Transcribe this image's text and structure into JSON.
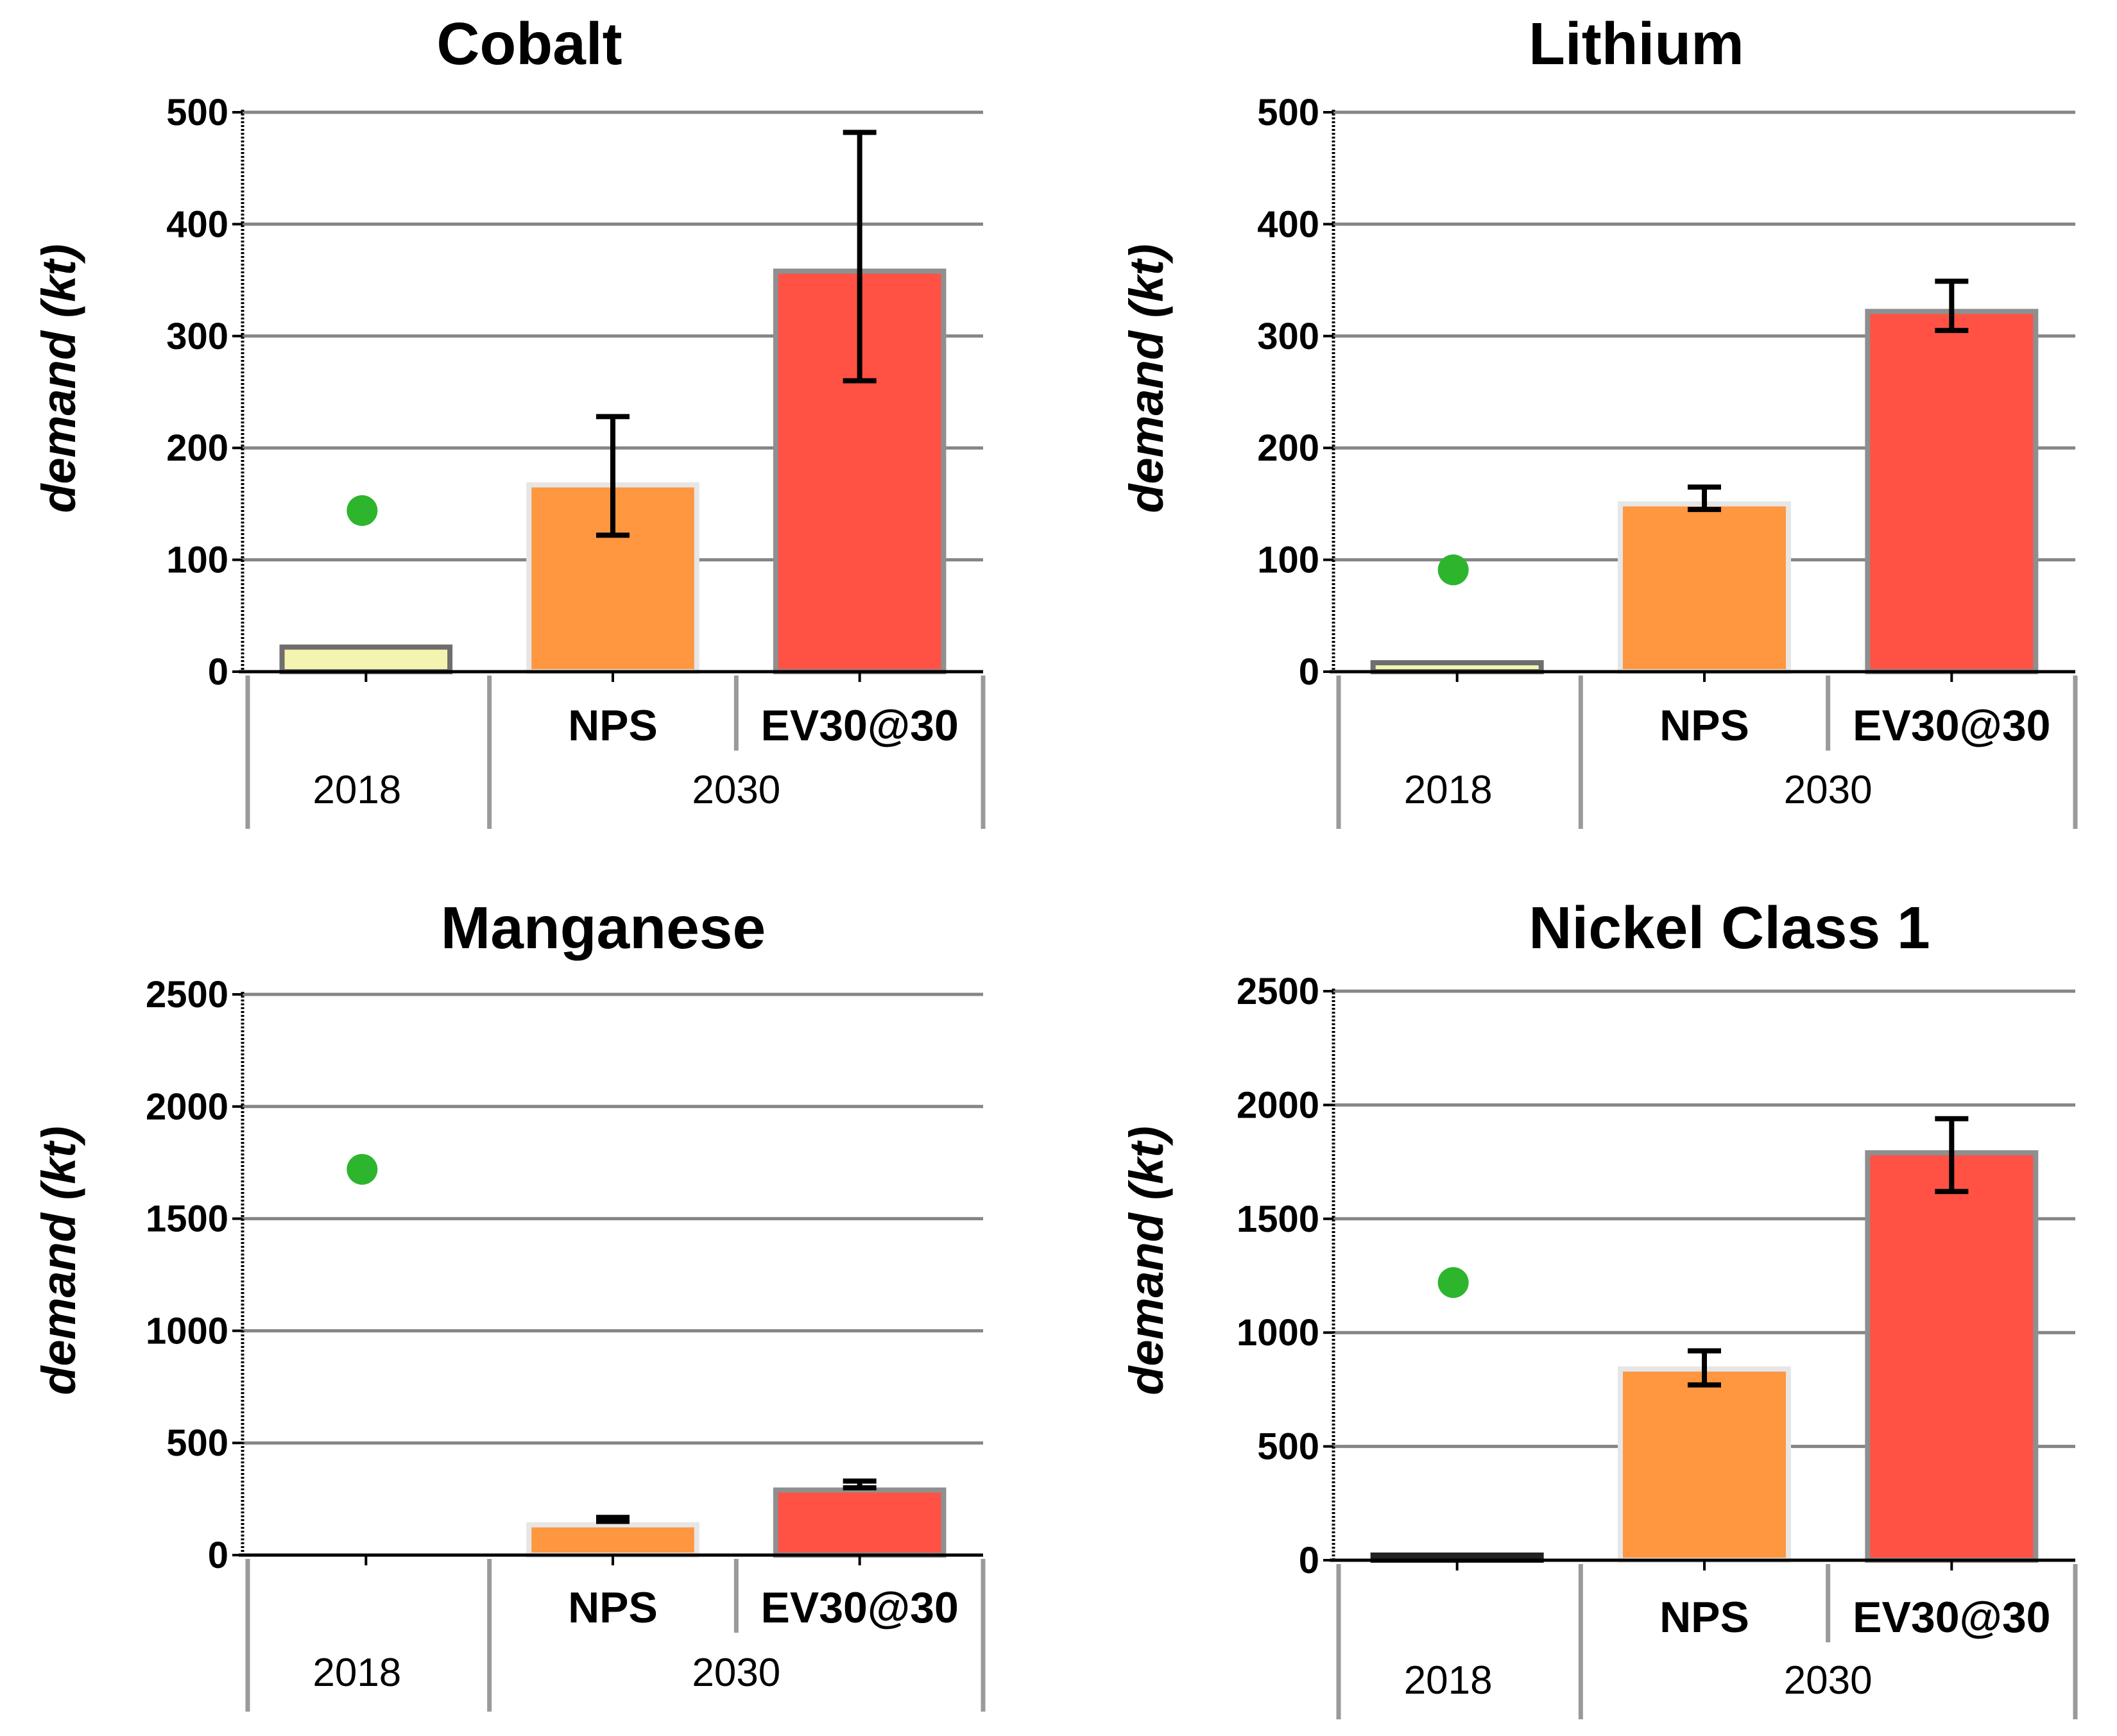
{
  "colors": {
    "bar_2018": "#F5F3B0",
    "bar_nps": "#FF9640",
    "bar_ev": "#FF5245",
    "dot": "#2DB52D",
    "grid": "#858585",
    "axis": "#000000"
  },
  "chart_data": [
    {
      "type": "bar",
      "title": "Cobalt",
      "ylabel": "demand (kt)",
      "ylim": [
        0,
        500
      ],
      "yticks": [
        0,
        100,
        200,
        300,
        400,
        500
      ],
      "categories": [
        "",
        "NPS",
        "EV30@30"
      ],
      "groups": [
        "2018",
        "2030"
      ],
      "values": [
        22,
        167,
        358
      ],
      "error_low": [
        null,
        122,
        260
      ],
      "error_high": [
        null,
        228,
        482
      ],
      "dot_2018": 144
    },
    {
      "type": "bar",
      "title": "Lithium",
      "ylabel": "demand (kt)",
      "ylim": [
        0,
        500
      ],
      "yticks": [
        0,
        100,
        200,
        300,
        400,
        500
      ],
      "categories": [
        "",
        "NPS",
        "EV30@30"
      ],
      "groups": [
        "2018",
        "2030"
      ],
      "values": [
        8,
        150,
        322
      ],
      "error_low": [
        null,
        145,
        305
      ],
      "error_high": [
        null,
        165,
        349
      ],
      "dot_2018": 91
    },
    {
      "type": "bar",
      "title": "Manganese",
      "ylabel": "demand (kt)",
      "ylim": [
        0,
        2500
      ],
      "yticks": [
        0,
        500,
        1000,
        1500,
        2000,
        2500
      ],
      "categories": [
        "",
        "NPS",
        "EV30@30"
      ],
      "groups": [
        "2018",
        "2030"
      ],
      "values": [
        0,
        135,
        290
      ],
      "error_low": [
        null,
        150,
        300
      ],
      "error_high": [
        null,
        168,
        330
      ],
      "dot_2018": 1720
    },
    {
      "type": "bar",
      "title": "Nickel Class 1",
      "ylabel": "demand (kt)",
      "ylim": [
        0,
        2500
      ],
      "yticks": [
        0,
        500,
        1000,
        1500,
        2000,
        2500
      ],
      "categories": [
        "",
        "NPS",
        "EV30@30"
      ],
      "groups": [
        "2018",
        "2030"
      ],
      "values": [
        15,
        840,
        1790
      ],
      "error_low": [
        null,
        770,
        1620
      ],
      "error_high": [
        null,
        920,
        1940
      ],
      "dot_2018": 1220
    }
  ]
}
